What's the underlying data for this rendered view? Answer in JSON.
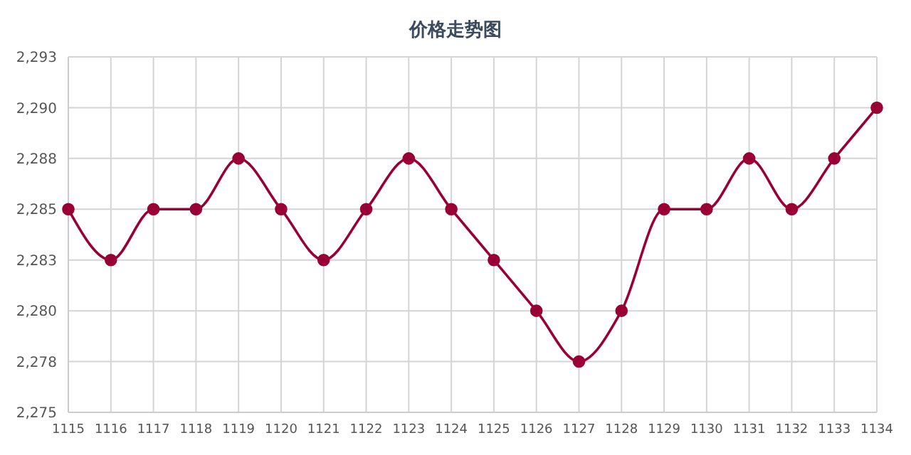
{
  "chart_data": {
    "type": "line",
    "title": "价格走势图",
    "categories": [
      "1115",
      "1116",
      "1117",
      "1118",
      "1119",
      "1120",
      "1121",
      "1122",
      "1123",
      "1124",
      "1125",
      "1126",
      "1127",
      "1128",
      "1129",
      "1130",
      "1131",
      "1132",
      "1133",
      "1134"
    ],
    "series": [
      {
        "color": "#990033",
        "values": [
          2285,
          2282.5,
          2285,
          2285,
          2287.5,
          2285,
          2282.5,
          2285,
          2287.5,
          2285,
          2282.5,
          2280,
          2277.5,
          2280,
          2285,
          2285,
          2287.5,
          2285,
          2287.5,
          2290
        ]
      }
    ],
    "ylim": [
      2275,
      2292.5
    ],
    "yticks": [
      {
        "value": 2275,
        "label": "2,275"
      },
      {
        "value": 2277.5,
        "label": "2,278"
      },
      {
        "value": 2280,
        "label": "2,280"
      },
      {
        "value": 2282.5,
        "label": "2,283"
      },
      {
        "value": 2285,
        "label": "2,285"
      },
      {
        "value": 2287.5,
        "label": "2,288"
      },
      {
        "value": 2290,
        "label": "2,290"
      },
      {
        "value": 2292.5,
        "label": "2,293"
      }
    ],
    "grid": true,
    "marker": "circle"
  }
}
